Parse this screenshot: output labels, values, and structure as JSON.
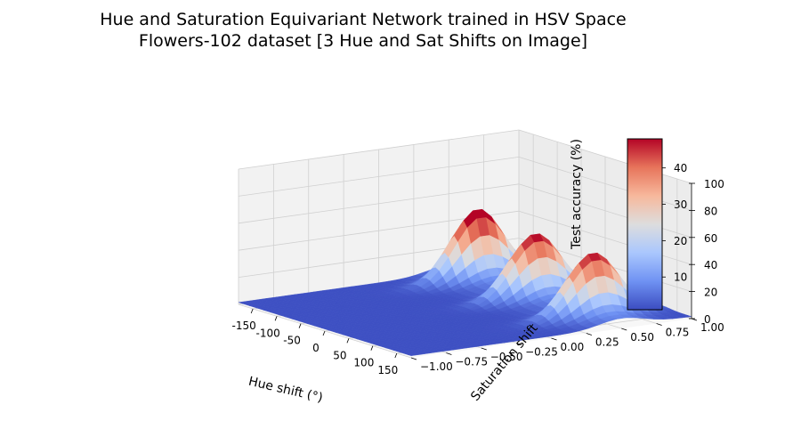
{
  "chart_data": {
    "type": "surface3d",
    "title": "Hue and Saturation Equivariant Network trained in HSV Space",
    "subtitle": "Flowers-102 dataset [3 Hue and Sat Shifts on Image]",
    "xlabel": "Hue shift (°)",
    "ylabel": "Saturation shift",
    "zlabel": "Test accuracy (%)",
    "xlim": [
      -180,
      180
    ],
    "ylim": [
      -1.0,
      1.0
    ],
    "zlim": [
      0,
      100
    ],
    "x_ticks": [
      -150,
      -100,
      -50,
      0,
      50,
      100,
      150
    ],
    "x_tick_labels": [
      "-150",
      "-100",
      "-50",
      "0",
      "50",
      "100",
      "150"
    ],
    "y_ticks": [
      -1.0,
      -0.75,
      -0.5,
      -0.25,
      0.0,
      0.25,
      0.5,
      0.75,
      1.0
    ],
    "y_tick_labels": [
      "−1.00",
      "−0.75",
      "−0.50",
      "−0.25",
      "0.00",
      "0.25",
      "0.50",
      "0.75",
      "1.00"
    ],
    "z_ticks": [
      0,
      20,
      40,
      60,
      80,
      100
    ],
    "z_tick_labels": [
      "0",
      "20",
      "40",
      "60",
      "80",
      "100"
    ],
    "grid": true,
    "colormap": "coolwarm",
    "colormap_stops": [
      "#3b4cc0",
      "#6f92f3",
      "#aac7fd",
      "#dddddd",
      "#f7b89c",
      "#e7745b",
      "#b40426"
    ],
    "colorbar": {
      "range": [
        1,
        48
      ],
      "ticks": [
        10,
        20,
        30,
        40
      ],
      "tick_labels": [
        "10",
        "20",
        "30",
        "40"
      ]
    },
    "surface": {
      "baseline": 1.5,
      "peaks": [
        {
          "hue": -120,
          "sat": 0.5,
          "height": 48
        },
        {
          "hue": 0,
          "sat": 0.5,
          "height": 43
        },
        {
          "hue": 120,
          "sat": 0.5,
          "height": 42
        }
      ],
      "ridge_sat": 0.5,
      "ridge_height": 6
    }
  }
}
